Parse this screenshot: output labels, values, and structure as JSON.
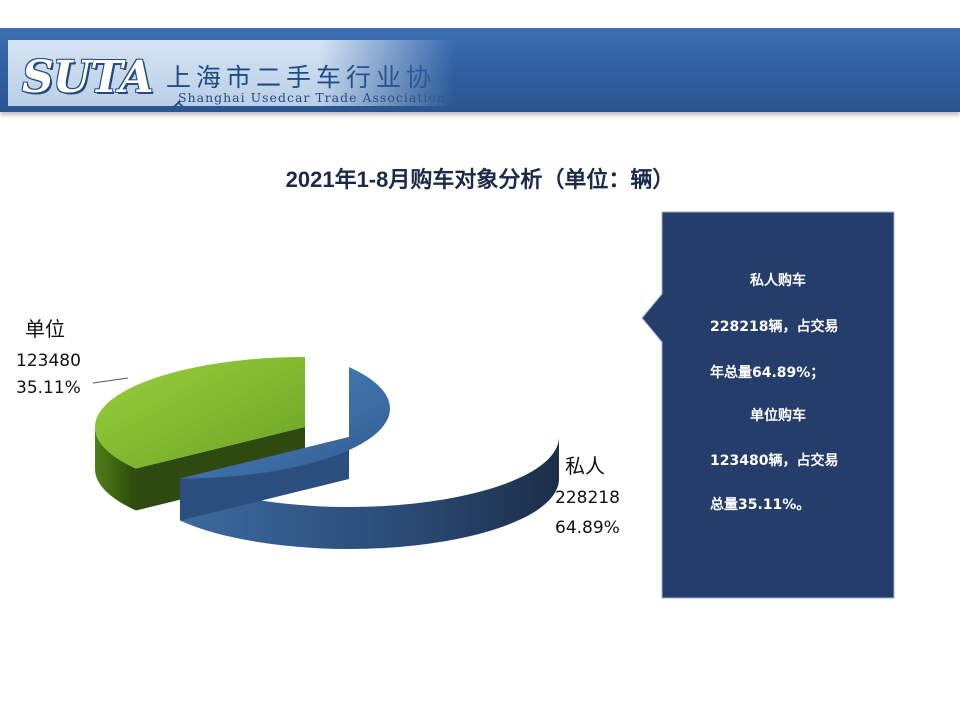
{
  "header": {
    "logo_text": "SUTA",
    "org_name_cn": "上海市二手车行业协会",
    "org_name_en": "Shanghai Usedcar Trade Association"
  },
  "chart_data": {
    "type": "pie",
    "title": "2021年1-8月购车对象分析（单位：辆）",
    "slices": [
      {
        "label": "私人",
        "value": 228218,
        "percent": "64.89%",
        "color": "#3a6ea5"
      },
      {
        "label": "单位",
        "value": 123480,
        "percent": "35.11%",
        "color": "#7ab72a"
      }
    ],
    "values_display": [
      "228218",
      "123480"
    ]
  },
  "callout": {
    "lines": [
      "私人购车",
      "228218辆，占交易",
      "年总量64.89%；",
      "单位购车",
      "123480辆，占交易",
      "总量35.11%。"
    ]
  }
}
